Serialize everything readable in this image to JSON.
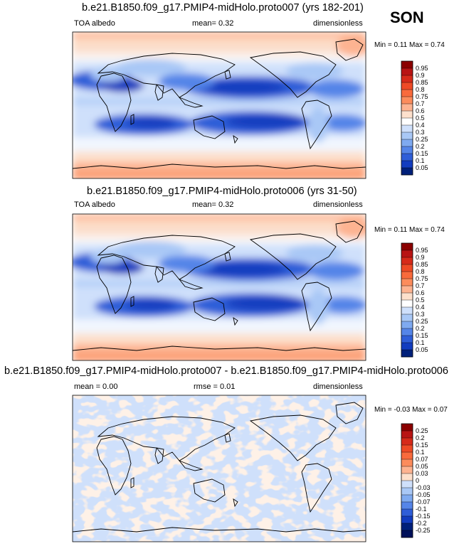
{
  "season": "SON",
  "panels": [
    {
      "title": "b.e21.B1850.f09_g17.PMIP4-midHolo.proto007 (yrs 182-201)",
      "left_label": "TOA albedo",
      "center_label": "mean=  0.32",
      "right_label": "dimensionless",
      "minmax": "Min =  0.11 Max =  0.74",
      "colorbar": "abs"
    },
    {
      "title": "b.e21.B1850.f09_g17.PMIP4-midHolo.proto006 (yrs 31-50)",
      "left_label": "TOA albedo",
      "center_label": "mean=  0.32",
      "right_label": "dimensionless",
      "minmax": "Min =  0.11 Max =  0.74",
      "colorbar": "abs"
    },
    {
      "title": "b.e21.B1850.f09_g17.PMIP4-midHolo.proto007 - b.e21.B1850.f09_g17.PMIP4-midHolo.proto006",
      "left_label": "mean =  0.00",
      "center_label": "rmse =  0.01",
      "right_label": "dimensionless",
      "minmax": "Min = -0.03 Max =  0.07",
      "colorbar": "diff"
    }
  ],
  "chart_data": {
    "type": "heatmap",
    "variable": "TOA albedo",
    "units": "dimensionless",
    "colorbars": {
      "abs": {
        "levels": [
          "0.95",
          "0.9",
          "0.85",
          "0.8",
          "0.75",
          "0.7",
          "0.6",
          "0.5",
          "0.4",
          "0.3",
          "0.25",
          "0.2",
          "0.15",
          "0.1",
          "0.05"
        ],
        "colors": [
          "#8b0000",
          "#b81414",
          "#d62a1a",
          "#ee4a26",
          "#f96a3c",
          "#fc8c5c",
          "#fdb391",
          "#fde0cc",
          "#ffffff",
          "#cfe0fb",
          "#a9c8f6",
          "#7faaf0",
          "#5585e8",
          "#2f5ed8",
          "#123cbf",
          "#00207a"
        ]
      },
      "diff": {
        "levels": [
          "0.25",
          "0.2",
          "0.15",
          "0.1",
          "0.07",
          "0.05",
          "0.03",
          "0",
          "-0.03",
          "-0.05",
          "-0.07",
          "-0.1",
          "-0.15",
          "-0.2",
          "-0.25"
        ],
        "colors": [
          "#8b0000",
          "#b81414",
          "#d62a1a",
          "#ee4a26",
          "#f96a3c",
          "#fc8c5c",
          "#fdb391",
          "#fde0cc",
          "#cfe0fb",
          "#a9c8f6",
          "#7faaf0",
          "#5585e8",
          "#2f5ed8",
          "#123cbf",
          "#00207a",
          "#00105a"
        ]
      }
    },
    "panel_stats": [
      {
        "mean": 0.32,
        "min": 0.11,
        "max": 0.74
      },
      {
        "mean": 0.32,
        "min": 0.11,
        "max": 0.74
      },
      {
        "mean": 0.0,
        "rmse": 0.01,
        "min": -0.03,
        "max": 0.07
      }
    ]
  }
}
